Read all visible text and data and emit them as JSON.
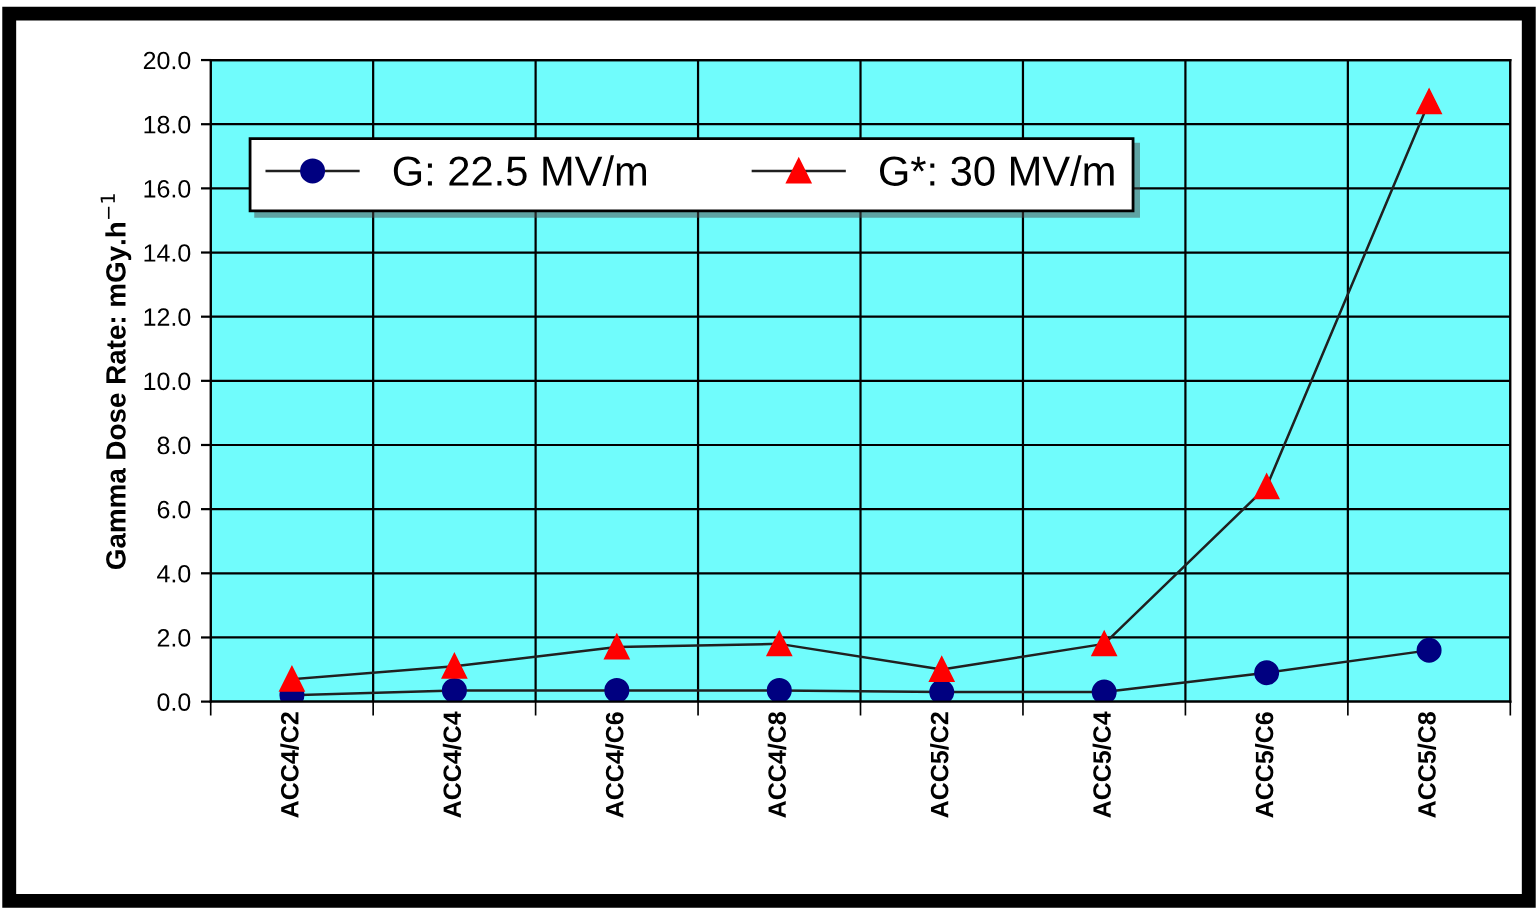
{
  "chart_data": {
    "type": "line",
    "ylabel": "Gamma Dose Rate: mGy.h$^{−1}$",
    "categories": [
      "ACC4/C2",
      "ACC4/C4",
      "ACC4/C6",
      "ACC4/C8",
      "ACC5/C2",
      "ACC5/C4",
      "ACC5/C6",
      "ACC5/C8"
    ],
    "series": [
      {
        "name": "G: 22.5 MV/m",
        "color": "#000080",
        "marker": "circle",
        "values": [
          0.2,
          0.35,
          0.35,
          0.35,
          0.3,
          0.3,
          0.9,
          1.6
        ]
      },
      {
        "name": "G*: 30 MV/m",
        "color": "#ff0000",
        "marker": "triangle",
        "values": [
          0.7,
          1.1,
          1.7,
          1.8,
          1.0,
          1.8,
          6.7,
          18.7
        ]
      }
    ],
    "ylim": [
      0,
      20
    ],
    "yticks": [
      {
        "value": 0,
        "label": "0.0"
      },
      {
        "value": 2,
        "label": "2.0"
      },
      {
        "value": 4,
        "label": "4.0"
      },
      {
        "value": 6,
        "label": "6.0"
      },
      {
        "value": 8,
        "label": "8.0"
      },
      {
        "value": 10,
        "label": "10.0"
      },
      {
        "value": 12,
        "label": "12.0"
      },
      {
        "value": 14,
        "label": "14.0"
      },
      {
        "value": 16,
        "label": "16.0"
      },
      {
        "value": 18,
        "label": "18.0"
      },
      {
        "value": 20,
        "label": "20.0"
      }
    ],
    "grid": true,
    "legend": "top",
    "line_style": "solid"
  }
}
